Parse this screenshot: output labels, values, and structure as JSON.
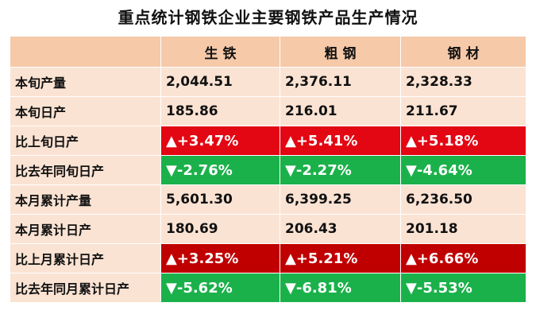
{
  "title": "重点统计钢铁企业主要钢铁产品生产情况",
  "chart_data": {
    "type": "table",
    "title": "重点统计钢铁企业主要钢铁产品生产情况",
    "columns": [
      "",
      "生 铁",
      "粗 钢",
      "钢 材"
    ],
    "rows": [
      {
        "label": "本旬产量",
        "values": [
          "2,044.51",
          "2,376.11",
          "2,328.33"
        ],
        "style": "val"
      },
      {
        "label": "本旬日产",
        "values": [
          "185.86",
          "216.01",
          "211.67"
        ],
        "style": "val"
      },
      {
        "label": "比上旬日产",
        "values": [
          "▲+3.47%",
          "▲+5.41%",
          "▲+5.18%"
        ],
        "style": "up"
      },
      {
        "label": "比去年同旬日产",
        "values": [
          "▼-2.76%",
          "▼-2.27%",
          "▼-4.64%"
        ],
        "style": "down"
      },
      {
        "label": "本月累计产量",
        "values": [
          "5,601.30",
          "6,399.25",
          "6,236.50"
        ],
        "style": "val"
      },
      {
        "label": "本月累计日产",
        "values": [
          "180.69",
          "206.43",
          "201.18"
        ],
        "style": "val"
      },
      {
        "label": "比上月累计日产",
        "values": [
          "▲+3.25%",
          "▲+5.21%",
          "▲+6.66%"
        ],
        "style": "up-dark"
      },
      {
        "label": "比去年同月累计日产",
        "values": [
          "▼-5.62%",
          "▼-6.81%",
          "▼-5.53%"
        ],
        "style": "down"
      }
    ],
    "colors": {
      "header": "#f6c9a8",
      "cell": "#fbe3d3",
      "increase": "#e30613",
      "increase_dark": "#c00000",
      "decrease": "#1bb14a"
    }
  }
}
